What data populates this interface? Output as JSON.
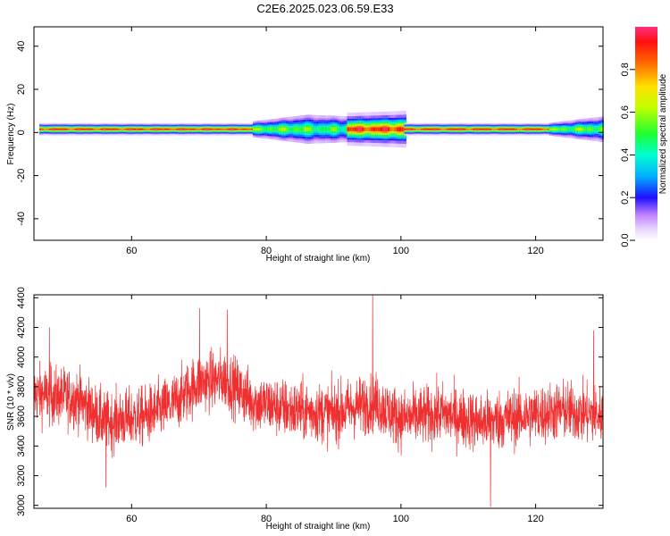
{
  "title": "C2E6.2025.023.06.59.E33",
  "chart_data": [
    {
      "type": "heatmap",
      "xlabel": "Height of straight line (km)",
      "ylabel": "Frequency (Hz)",
      "xlim": [
        45.5,
        130
      ],
      "ylim": [
        -50,
        49
      ],
      "x_ticks": [
        60,
        80,
        100,
        120
      ],
      "y_ticks": [
        -40,
        -20,
        0,
        20,
        40
      ],
      "colorbar": {
        "label": "Normalized spectral amplitude",
        "range": [
          0,
          1
        ],
        "ticks": [
          0.0,
          0.2,
          0.4,
          0.6,
          0.8
        ],
        "tick_labels": [
          "0.0",
          "0.2",
          "0.4",
          "0.6",
          "0.8"
        ]
      },
      "ridge": {
        "center_frequency_hz": 1.5,
        "segments": [
          {
            "x": [
              46.3,
              78
            ],
            "half_width_hz": [
              1.5,
              1.5
            ],
            "peak": 0.92
          },
          {
            "x": [
              78,
              86
            ],
            "half_width_hz": [
              2.5,
              4.5
            ],
            "peak": 0.55
          },
          {
            "x": [
              86,
              92
            ],
            "half_width_hz": [
              4.5,
              4
            ],
            "peak": 0.5
          },
          {
            "x": [
              92,
              100.5
            ],
            "half_width_hz": [
              4,
              4.5
            ],
            "peak": 0.9
          },
          {
            "x": [
              100.5,
              122
            ],
            "half_width_hz": [
              1.5,
              1.5
            ],
            "peak": 0.92
          },
          {
            "x": [
              122,
              130
            ],
            "half_width_hz": [
              2,
              4
            ],
            "peak": 0.55
          }
        ]
      }
    },
    {
      "type": "line",
      "xlabel": "Height of straight line (km)",
      "ylabel": "SNR (10 * v/v)",
      "xlim": [
        45.5,
        130
      ],
      "ylim": [
        2980,
        4420
      ],
      "x_ticks": [
        60,
        80,
        100,
        120
      ],
      "y_ticks": [
        3000,
        3200,
        3400,
        3600,
        3800,
        4000,
        4200,
        4400
      ],
      "series": [
        {
          "color": "#f03030",
          "x_range": [
            45.5,
            130
          ],
          "points_per_km": 33,
          "baseline": [
            {
              "x": 46,
              "y": 3750
            },
            {
              "x": 52,
              "y": 3720
            },
            {
              "x": 56,
              "y": 3560
            },
            {
              "x": 62,
              "y": 3600
            },
            {
              "x": 66,
              "y": 3680
            },
            {
              "x": 70,
              "y": 3830
            },
            {
              "x": 74,
              "y": 3850
            },
            {
              "x": 78,
              "y": 3700
            },
            {
              "x": 84,
              "y": 3640
            },
            {
              "x": 90,
              "y": 3620
            },
            {
              "x": 96,
              "y": 3700
            },
            {
              "x": 100,
              "y": 3580
            },
            {
              "x": 106,
              "y": 3620
            },
            {
              "x": 112,
              "y": 3560
            },
            {
              "x": 118,
              "y": 3600
            },
            {
              "x": 124,
              "y": 3640
            },
            {
              "x": 130,
              "y": 3600
            }
          ],
          "noise_amplitude": 180,
          "spikes": [
            {
              "x": 95.8,
              "y": 4420
            },
            {
              "x": 74.2,
              "y": 4320
            },
            {
              "x": 70.1,
              "y": 4330
            },
            {
              "x": 56.2,
              "y": 3120
            },
            {
              "x": 113.3,
              "y": 2990
            },
            {
              "x": 128.6,
              "y": 4180
            },
            {
              "x": 47.8,
              "y": 4200
            }
          ]
        }
      ]
    }
  ]
}
